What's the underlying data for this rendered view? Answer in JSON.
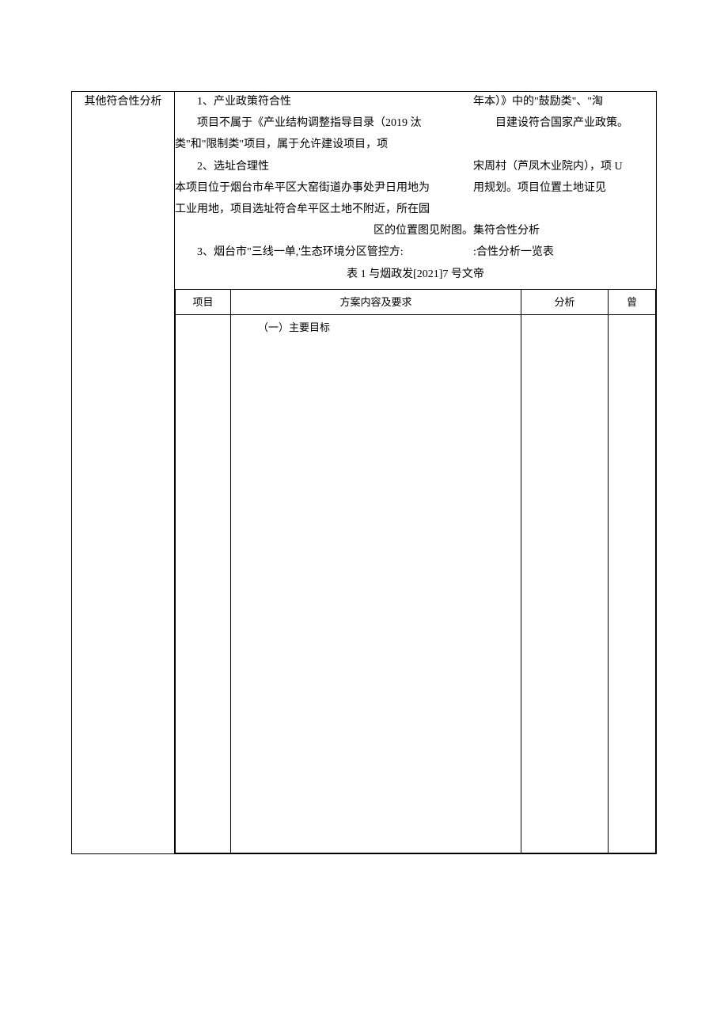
{
  "label": "其他符合性分析",
  "section1": {
    "heading_l": "1、产业政策符合性",
    "heading_r": "年本）》中的\"鼓励类\"、\"淘",
    "line2_l": "项目不属于《产业结构调整指导目录（2019 汰",
    "line2_r": "目建设符合国家产业政策。",
    "line3": "类\"和\"限制类\"项目，属于允许建设项目，项"
  },
  "section2": {
    "heading_l": "2、选址合理性",
    "heading_r": "宋周村（芦凤木业院内），项 U",
    "line2_l": "本项目位于烟台市牟平区大窑街道办事处尹日用地为",
    "line2_r": "用规划。项目位置土地证见",
    "line3_l": "工业用地，项目选址符合牟平区土地不附近，所在园",
    "line3_r": "",
    "line4_l": "区的位置图见附图。",
    "line4_r": "集符合性分析"
  },
  "section3": {
    "heading_l": "3、烟台市\"三线一单,'生态环境分区管控方:",
    "heading_r": ":合性分析一览表",
    "line2": "表 1 与烟政发[2021]7 号文帝"
  },
  "inner_table": {
    "headers": {
      "col1": "项目",
      "col2": "方案内容及要求",
      "col3": "分析",
      "col4": "曾"
    },
    "row1": {
      "col2": "（一）主要目标"
    }
  },
  "colors": {
    "text": "#000000",
    "background": "#ffffff",
    "border": "#000000"
  },
  "typography": {
    "body_fontsize": 14,
    "inner_table_fontsize": 13,
    "font_family": "SimSun"
  }
}
